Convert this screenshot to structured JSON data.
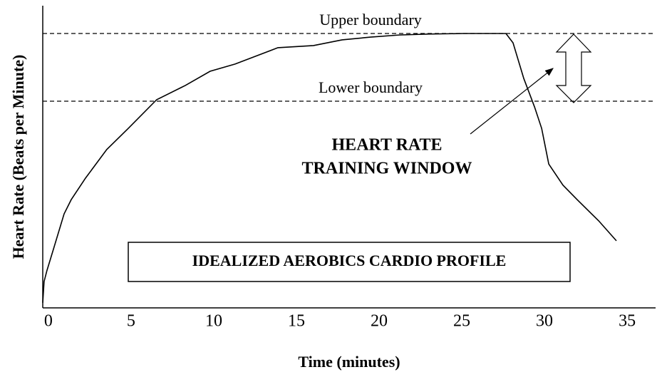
{
  "chart_data": {
    "type": "line",
    "x_label": "Time (minutes)",
    "y_label": "Heart Rate (Beats per Minute)",
    "x": [
      -0.34,
      -0.26,
      -0.09,
      0.3,
      0.95,
      1.38,
      2.24,
      3.53,
      4.83,
      6.55,
      8.28,
      9.78,
      11.29,
      13.88,
      16.03,
      17.76,
      19.48,
      21.21,
      22.93,
      25.09,
      27.67,
      28.1,
      28.75,
      29.4,
      29.83,
      30.26,
      31.12,
      31.98,
      33.28,
      34.35
    ],
    "series": [
      {
        "color": "#000000",
        "values": [
          1.7,
          8.7,
          12.3,
          19.3,
          31.1,
          35.8,
          42.9,
          52.4,
          59.4,
          68.9,
          73.6,
          78.3,
          80.7,
          86.1,
          86.8,
          88.7,
          89.6,
          90.3,
          90.6,
          90.8,
          90.8,
          87.7,
          75.9,
          66.5,
          59.4,
          47.6,
          40.6,
          35.8,
          28.8,
          22.2
        ]
      }
    ],
    "xlim": [
      -0.34,
      36.72
    ],
    "ylim": [
      0,
      100
    ],
    "xticks": [
      0,
      5,
      10,
      15,
      20,
      25,
      30,
      35
    ],
    "reference_lines": [
      {
        "label": "Upper boundary",
        "value": 90.8
      },
      {
        "label": "Lower boundary",
        "value": 68.4
      }
    ],
    "annotations": [
      "HEART RATE",
      "TRAINING WINDOW",
      "IDEALIZED AEROBICS CARDIO PROFILE"
    ]
  }
}
